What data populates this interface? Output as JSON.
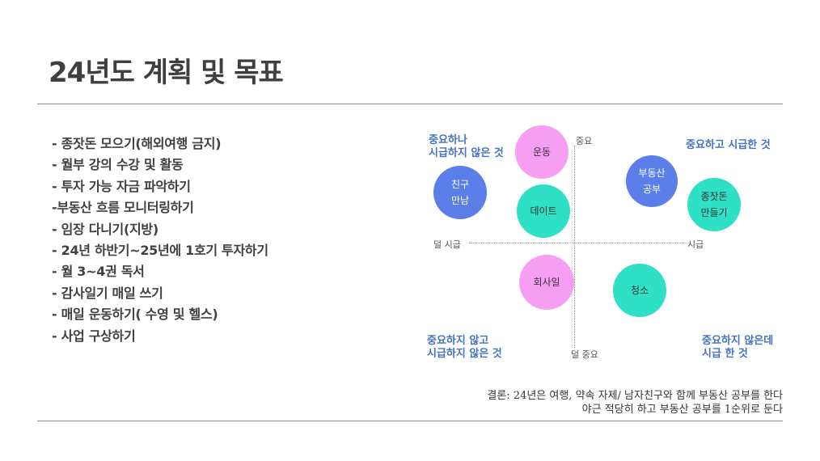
{
  "title": "24년도 계획 및 목표",
  "plan_items": [
    "- 종잣돈 모으기(해외여행 금지)",
    "- 월부 강의 수강 및 활동",
    "- 투자 가능 자금 파악하기",
    "-부동산 흐름 모니터링하기",
    "- 임장 다니기(지방)",
    "- 24년 하반기~25년에 1호기 투자하기",
    "- 월 3~4권 독서",
    "- 감사일기 매일 쓰기",
    "- 매일 운동하기( 수영 및 헬스)",
    "- 사업 구상하기"
  ],
  "matrix": {
    "axis": {
      "top": "중요",
      "bottom": "덜 중요",
      "left": "덜 시급",
      "right": "시급"
    },
    "quadrants": {
      "top_left": [
        "중요하나",
        "시급하지 않은 것"
      ],
      "top_right": [
        "중요하고 시급한 것"
      ],
      "bottom_left": [
        "중요하지 않고",
        "시급하지 않은 것"
      ],
      "bottom_right": [
        "중요하지 않은데",
        "시급 한 것"
      ]
    },
    "bubbles": {
      "friend": [
        "친구",
        "만남"
      ],
      "exercise": [
        "운동"
      ],
      "date": [
        "데이트"
      ],
      "real_estate": [
        "부동산",
        "공부"
      ],
      "seed_money": [
        "종잣돈",
        "만들기"
      ],
      "company_work": [
        "회사일"
      ],
      "cleaning": [
        "청소"
      ]
    }
  },
  "conclusion": [
    "결론: 24년은 여행, 약속 자제/ 남자친구와 함께 부동산 공부를 한다",
    "야근 적당히 하고 부동산 공부를 1순위로 둔다"
  ],
  "colors": {
    "blue": "#5b7fe8",
    "pink": "#f59ef2",
    "teal": "#2de0c6",
    "quadrant_text": "#4472c4"
  }
}
